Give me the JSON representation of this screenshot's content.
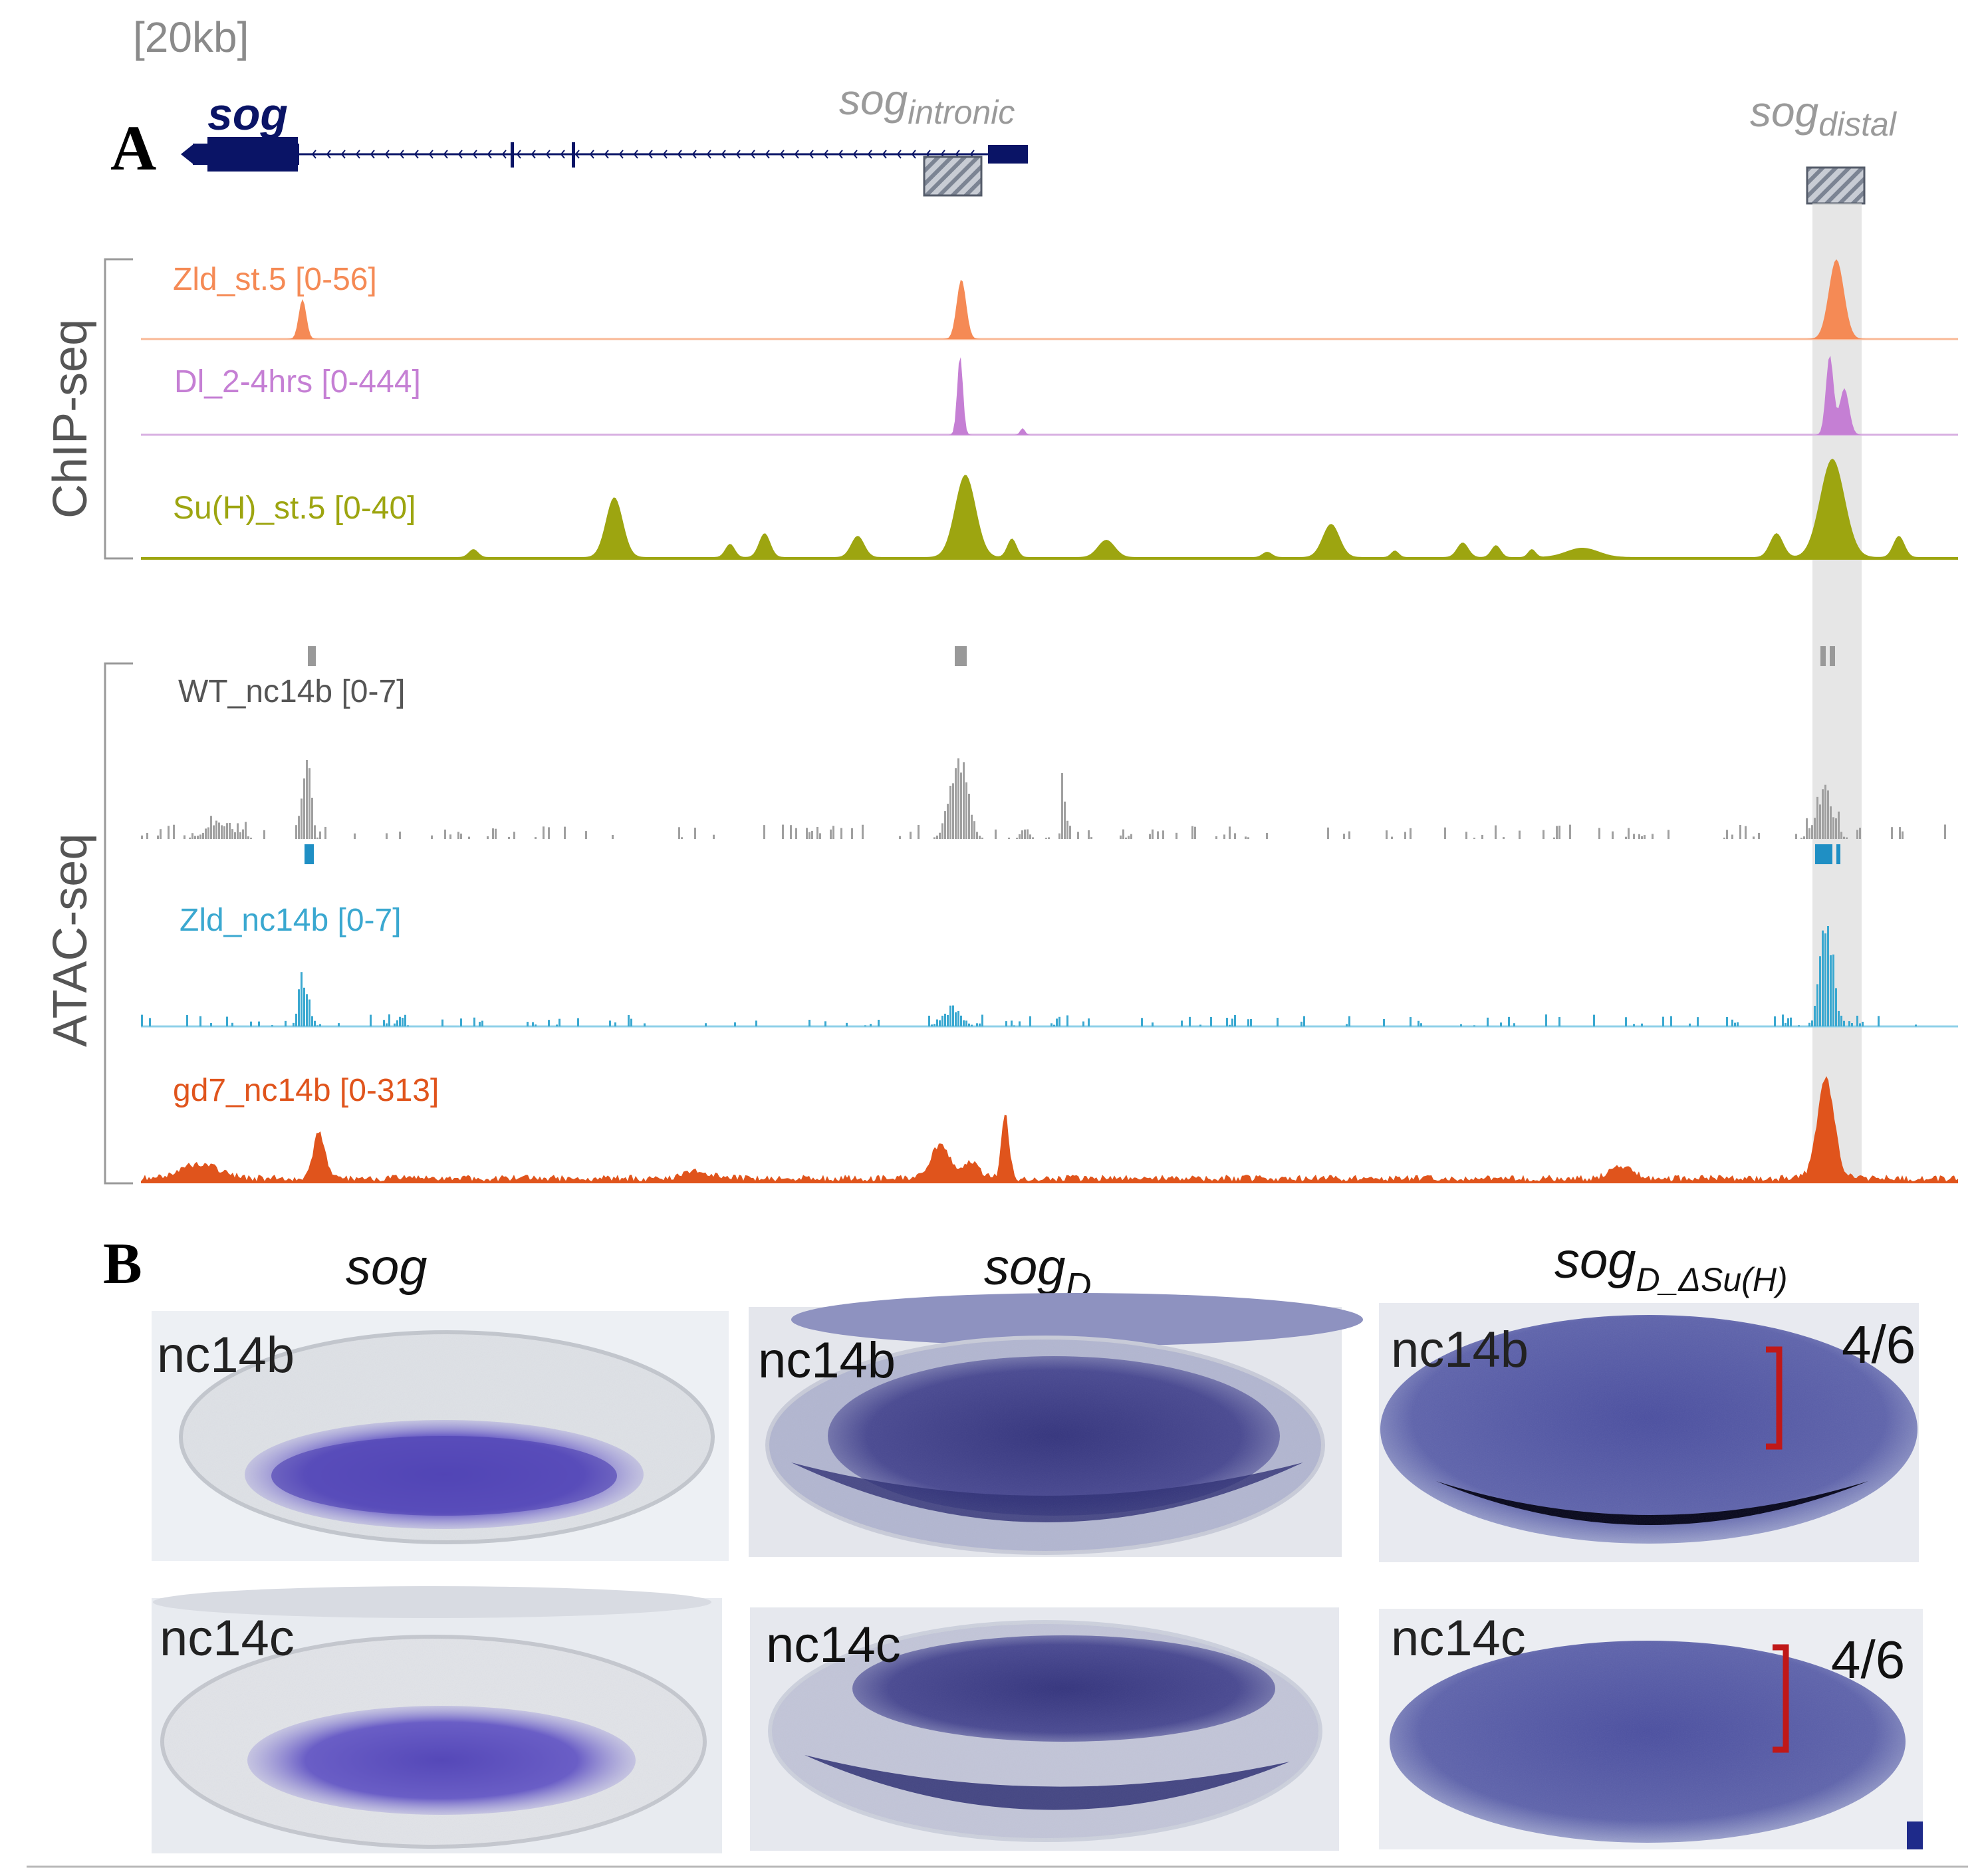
{
  "figure": {
    "scale_label": "[20kb]",
    "panel_a_label": "A",
    "panel_b_label": "B",
    "gene_label": "sog",
    "enhancer_intronic": {
      "base": "sog",
      "sub": "intronic"
    },
    "enhancer_distal": {
      "base": "sog",
      "sub": "distal"
    },
    "group_chip": "ChIP-seq",
    "group_atac": "ATAC-seq",
    "colors": {
      "zld_st5": "#f58a55",
      "dl": "#c57fd4",
      "suh": "#9da510",
      "wt_atac": "#a0a0a0",
      "zld_atac": "#3aa8d0",
      "gd7": "#e0541c",
      "gene": "#0a1466",
      "bracket": "#c01818"
    }
  },
  "tracks": [
    {
      "name": "Zld_st.5 [0-56]",
      "color": "#f58a55"
    },
    {
      "name": "Dl_2-4hrs [0-444]",
      "color": "#c57fd4"
    },
    {
      "name": "Su(H)_st.5 [0-40]",
      "color": "#9da510"
    },
    {
      "name": "WT_nc14b [0-7]",
      "color": "#888888"
    },
    {
      "name": "Zld_nc14b [0-7]",
      "color": "#3aa8d0"
    },
    {
      "name": "gd7_nc14b [0-313]",
      "color": "#e0541c"
    }
  ],
  "panel_b": {
    "columns": [
      {
        "base": "sog",
        "sub": ""
      },
      {
        "base": "sog",
        "sub": "D"
      },
      {
        "base": "sog",
        "sub": "D_ΔSu(H)"
      }
    ],
    "stages": [
      "nc14b",
      "nc14c"
    ],
    "ratios": [
      "4/6",
      "4/6"
    ]
  }
}
